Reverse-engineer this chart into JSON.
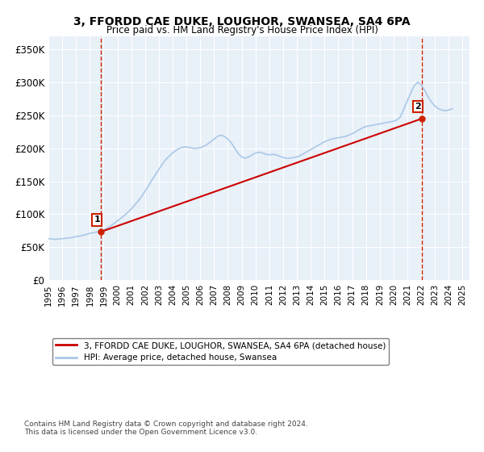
{
  "title": "3, FFORDD CAE DUKE, LOUGHOR, SWANSEA, SA4 6PA",
  "subtitle": "Price paid vs. HM Land Registry's House Price Index (HPI)",
  "ylabel_ticks": [
    "£0",
    "£50K",
    "£100K",
    "£150K",
    "£200K",
    "£250K",
    "£300K",
    "£350K"
  ],
  "ytick_vals": [
    0,
    50000,
    100000,
    150000,
    200000,
    250000,
    300000,
    350000
  ],
  "ylim": [
    0,
    370000
  ],
  "xlim_start": 1995.0,
  "xlim_end": 2025.5,
  "marker1_x": 1998.81,
  "marker1_y": 73500,
  "marker1_label": "1",
  "marker2_x": 2022.05,
  "marker2_y": 245000,
  "marker2_label": "2",
  "line1_label": "3, FFORDD CAE DUKE, LOUGHOR, SWANSEA, SA4 6PA (detached house)",
  "line2_label": "HPI: Average price, detached house, Swansea",
  "line1_color": "#cc0000",
  "line2_color": "#aac8e8",
  "marker_box_color": "#cc2200",
  "dashed_line_color": "#cc2200",
  "bg_color": "#e8f0f8",
  "plot_bg": "#e8f0f8",
  "footer": "Contains HM Land Registry data © Crown copyright and database right 2024.\nThis data is licensed under the Open Government Licence v3.0.",
  "hpi_data_x": [
    1995.0,
    1995.25,
    1995.5,
    1995.75,
    1996.0,
    1996.25,
    1996.5,
    1996.75,
    1997.0,
    1997.25,
    1997.5,
    1997.75,
    1998.0,
    1998.25,
    1998.5,
    1998.75,
    1999.0,
    1999.25,
    1999.5,
    1999.75,
    2000.0,
    2000.25,
    2000.5,
    2000.75,
    2001.0,
    2001.25,
    2001.5,
    2001.75,
    2002.0,
    2002.25,
    2002.5,
    2002.75,
    2003.0,
    2003.25,
    2003.5,
    2003.75,
    2004.0,
    2004.25,
    2004.5,
    2004.75,
    2005.0,
    2005.25,
    2005.5,
    2005.75,
    2006.0,
    2006.25,
    2006.5,
    2006.75,
    2007.0,
    2007.25,
    2007.5,
    2007.75,
    2008.0,
    2008.25,
    2008.5,
    2008.75,
    2009.0,
    2009.25,
    2009.5,
    2009.75,
    2010.0,
    2010.25,
    2010.5,
    2010.75,
    2011.0,
    2011.25,
    2011.5,
    2011.75,
    2012.0,
    2012.25,
    2012.5,
    2012.75,
    2013.0,
    2013.25,
    2013.5,
    2013.75,
    2014.0,
    2014.25,
    2014.5,
    2014.75,
    2015.0,
    2015.25,
    2015.5,
    2015.75,
    2016.0,
    2016.25,
    2016.5,
    2016.75,
    2017.0,
    2017.25,
    2017.5,
    2017.75,
    2018.0,
    2018.25,
    2018.5,
    2018.75,
    2019.0,
    2019.25,
    2019.5,
    2019.75,
    2020.0,
    2020.25,
    2020.5,
    2020.75,
    2021.0,
    2021.25,
    2021.5,
    2021.75,
    2022.0,
    2022.25,
    2022.5,
    2022.75,
    2023.0,
    2023.25,
    2023.5,
    2023.75,
    2024.0,
    2024.25
  ],
  "hpi_data_y": [
    63000,
    62500,
    62000,
    62500,
    63000,
    63500,
    64000,
    65000,
    66000,
    67000,
    68000,
    69500,
    71000,
    72000,
    73000,
    74000,
    76000,
    79000,
    82000,
    86000,
    90000,
    94000,
    98000,
    103000,
    108000,
    114000,
    120000,
    127000,
    135000,
    143000,
    152000,
    160000,
    168000,
    176000,
    183000,
    188000,
    193000,
    197000,
    200000,
    202000,
    202000,
    201000,
    200000,
    200000,
    201000,
    203000,
    206000,
    210000,
    214000,
    218000,
    220000,
    218000,
    214000,
    208000,
    200000,
    192000,
    187000,
    185000,
    187000,
    190000,
    193000,
    194000,
    193000,
    191000,
    190000,
    191000,
    190000,
    188000,
    186000,
    185000,
    185000,
    186000,
    187000,
    189000,
    192000,
    195000,
    198000,
    201000,
    204000,
    207000,
    210000,
    212000,
    214000,
    215000,
    216000,
    217000,
    218000,
    220000,
    222000,
    225000,
    228000,
    231000,
    233000,
    234000,
    235000,
    236000,
    237000,
    238000,
    239000,
    240000,
    241000,
    243000,
    248000,
    260000,
    272000,
    284000,
    295000,
    300000,
    296000,
    288000,
    278000,
    270000,
    264000,
    260000,
    258000,
    257000,
    258000,
    260000
  ],
  "price_line_x": [
    1998.81,
    2022.05
  ],
  "price_line_y": [
    73500,
    245000
  ],
  "xtick_years": [
    1995,
    1996,
    1997,
    1998,
    1999,
    2000,
    2001,
    2002,
    2003,
    2004,
    2005,
    2006,
    2007,
    2008,
    2009,
    2010,
    2011,
    2012,
    2013,
    2014,
    2015,
    2016,
    2017,
    2018,
    2019,
    2020,
    2021,
    2022,
    2023,
    2024,
    2025
  ]
}
